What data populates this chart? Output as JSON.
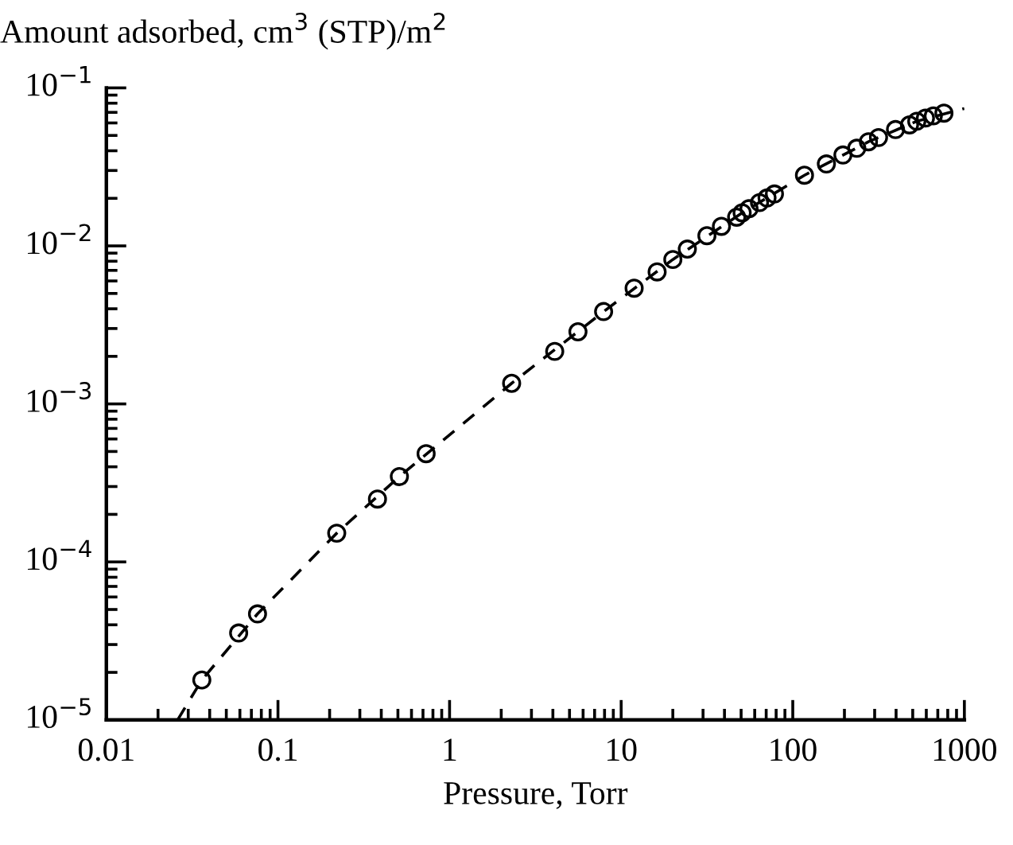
{
  "chart_data": {
    "type": "scatter",
    "xlabel": "Pressure, Torr",
    "ylabel": "Amount adsorbed, cm$^{3}$ (STP)/m$^{2}$",
    "log": "xy",
    "xlim": [
      0.01,
      1000
    ],
    "ylim": [
      1e-05,
      0.1
    ],
    "xticks": [
      0.01,
      0.1,
      1,
      10,
      100,
      1000
    ],
    "yticks": [
      {
        "value": 1e-05,
        "label": "10$^{−5}$"
      },
      {
        "value": 0.0001,
        "label": "10$^{−4}$"
      },
      {
        "value": 0.001,
        "label": "10$^{−3}$"
      },
      {
        "value": 0.01,
        "label": "10$^{−2}$"
      },
      {
        "value": 0.1,
        "label": "10$^{−1}$"
      }
    ],
    "grid": false,
    "legend": false,
    "series": [
      {
        "color": "#000000",
        "marker": "circle",
        "x": [
          0.036,
          0.059,
          0.076,
          0.22,
          0.38,
          0.51,
          0.73,
          2.3,
          4.1,
          5.6,
          7.9,
          11.9,
          16.2,
          20,
          24.3,
          31.6,
          38.4,
          47.1,
          50.7,
          55.6,
          64,
          70.8,
          78.2,
          117,
          157,
          196,
          236,
          276,
          316,
          397,
          479,
          528,
          593,
          659,
          760
        ],
        "values": [
          1.79e-05,
          3.55e-05,
          4.69e-05,
          0.000152,
          0.00025,
          0.000347,
          0.000484,
          0.00135,
          0.00215,
          0.00286,
          0.00384,
          0.0054,
          0.00685,
          0.0082,
          0.00955,
          0.0116,
          0.0133,
          0.0152,
          0.0162,
          0.0172,
          0.0188,
          0.0201,
          0.0213,
          0.028,
          0.033,
          0.0376,
          0.0415,
          0.0456,
          0.0485,
          0.0545,
          0.0583,
          0.0615,
          0.0644,
          0.0665,
          0.0692
        ]
      },
      {
        "type": "line",
        "color": "#000000",
        "line_style": "dashed",
        "marker": "none",
        "x": [
          0.026,
          0.036,
          0.076,
          0.22,
          0.51,
          2.3,
          7.9,
          20,
          50.7,
          117,
          276,
          528,
          1000
        ],
        "values": [
          1e-05,
          1.79e-05,
          4.69e-05,
          0.000152,
          0.000347,
          0.00135,
          0.00384,
          0.0082,
          0.0162,
          0.028,
          0.0456,
          0.0615,
          0.074
        ]
      }
    ]
  }
}
